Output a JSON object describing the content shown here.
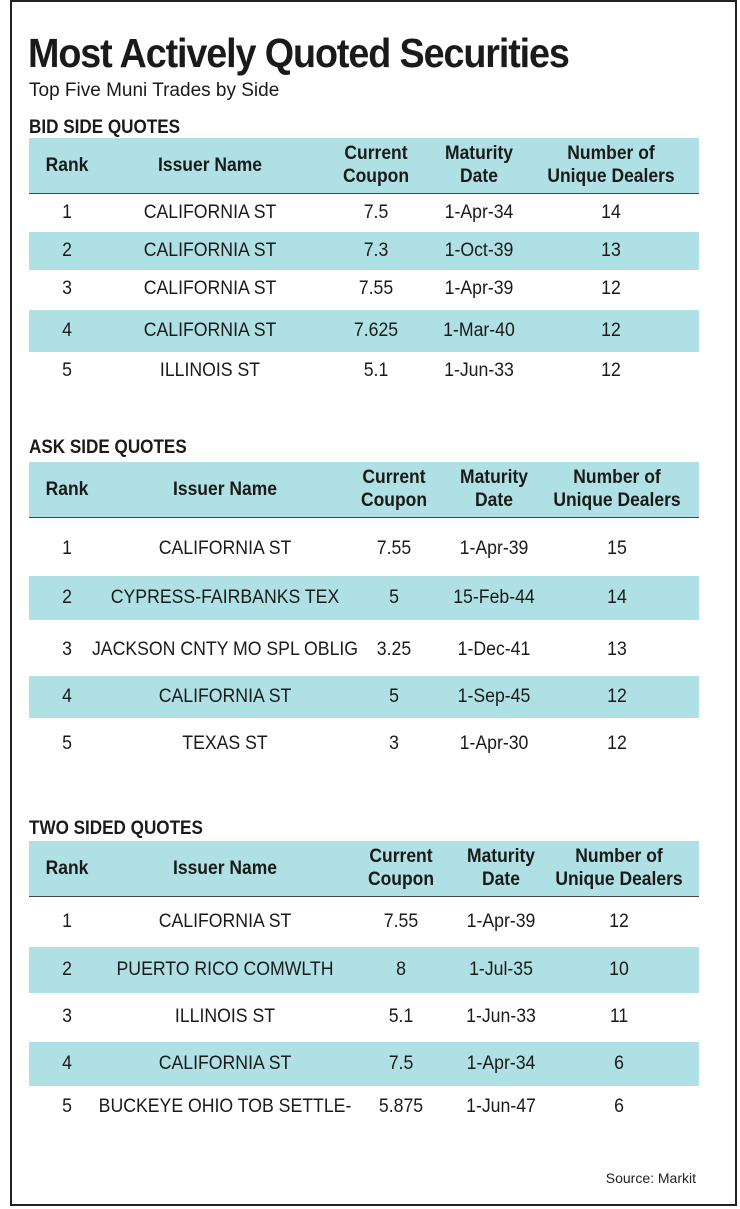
{
  "title": "Most Actively Quoted Securities",
  "subtitle": "Top Five Muni Trades by Side",
  "columns": {
    "rank": "Rank",
    "issuer": "Issuer Name",
    "coupon_line1": "Current",
    "coupon_line2": "Coupon",
    "maturity_line1": "Maturity",
    "maturity_line2": "Date",
    "dealers_line1": "Number of",
    "dealers_line2": "Unique Dealers"
  },
  "bid": {
    "label": "BID SIDE QUOTES",
    "rows": [
      {
        "rank": "1",
        "issuer": "CALIFORNIA ST",
        "coupon": "7.5",
        "maturity": "1-Apr-34",
        "dealers": "14"
      },
      {
        "rank": "2",
        "issuer": "CALIFORNIA ST",
        "coupon": "7.3",
        "maturity": "1-Oct-39",
        "dealers": "13"
      },
      {
        "rank": "3",
        "issuer": "CALIFORNIA ST",
        "coupon": "7.55",
        "maturity": "1-Apr-39",
        "dealers": "12"
      },
      {
        "rank": "4",
        "issuer": "CALIFORNIA ST",
        "coupon": "7.625",
        "maturity": "1-Mar-40",
        "dealers": "12"
      },
      {
        "rank": "5",
        "issuer": "ILLINOIS ST",
        "coupon": "5.1",
        "maturity": "1-Jun-33",
        "dealers": "12"
      }
    ]
  },
  "ask": {
    "label": "ASK SIDE QUOTES",
    "rows": [
      {
        "rank": "1",
        "issuer": "CALIFORNIA ST",
        "coupon": "7.55",
        "maturity": "1-Apr-39",
        "dealers": "15"
      },
      {
        "rank": "2",
        "issuer": "CYPRESS-FAIRBANKS TEX",
        "coupon": "5",
        "maturity": "15-Feb-44",
        "dealers": "14"
      },
      {
        "rank": "3",
        "issuer": "JACKSON CNTY MO SPL OBLIG",
        "coupon": "3.25",
        "maturity": "1-Dec-41",
        "dealers": "13"
      },
      {
        "rank": "4",
        "issuer": "CALIFORNIA ST",
        "coupon": "5",
        "maturity": "1-Sep-45",
        "dealers": "12"
      },
      {
        "rank": "5",
        "issuer": "TEXAS ST",
        "coupon": "3",
        "maturity": "1-Apr-30",
        "dealers": "12"
      }
    ]
  },
  "two": {
    "label": "TWO SIDED QUOTES",
    "rows": [
      {
        "rank": "1",
        "issuer": "CALIFORNIA ST",
        "coupon": "7.55",
        "maturity": "1-Apr-39",
        "dealers": "12"
      },
      {
        "rank": "2",
        "issuer": "PUERTO RICO COMWLTH",
        "coupon": "8",
        "maturity": "1-Jul-35",
        "dealers": "10"
      },
      {
        "rank": "3",
        "issuer": "ILLINOIS ST",
        "coupon": "5.1",
        "maturity": "1-Jun-33",
        "dealers": "11"
      },
      {
        "rank": "4",
        "issuer": "CALIFORNIA ST",
        "coupon": "7.5",
        "maturity": "1-Apr-34",
        "dealers": "6"
      },
      {
        "rank": "5",
        "issuer": "BUCKEYE OHIO TOB SETTLE-",
        "coupon": "5.875",
        "maturity": "1-Jun-47",
        "dealers": "6"
      }
    ]
  },
  "source": "Source: Markit",
  "colors": {
    "row_shade": "#afe0e4",
    "text": "#1a1a1a",
    "border": "#222222"
  }
}
